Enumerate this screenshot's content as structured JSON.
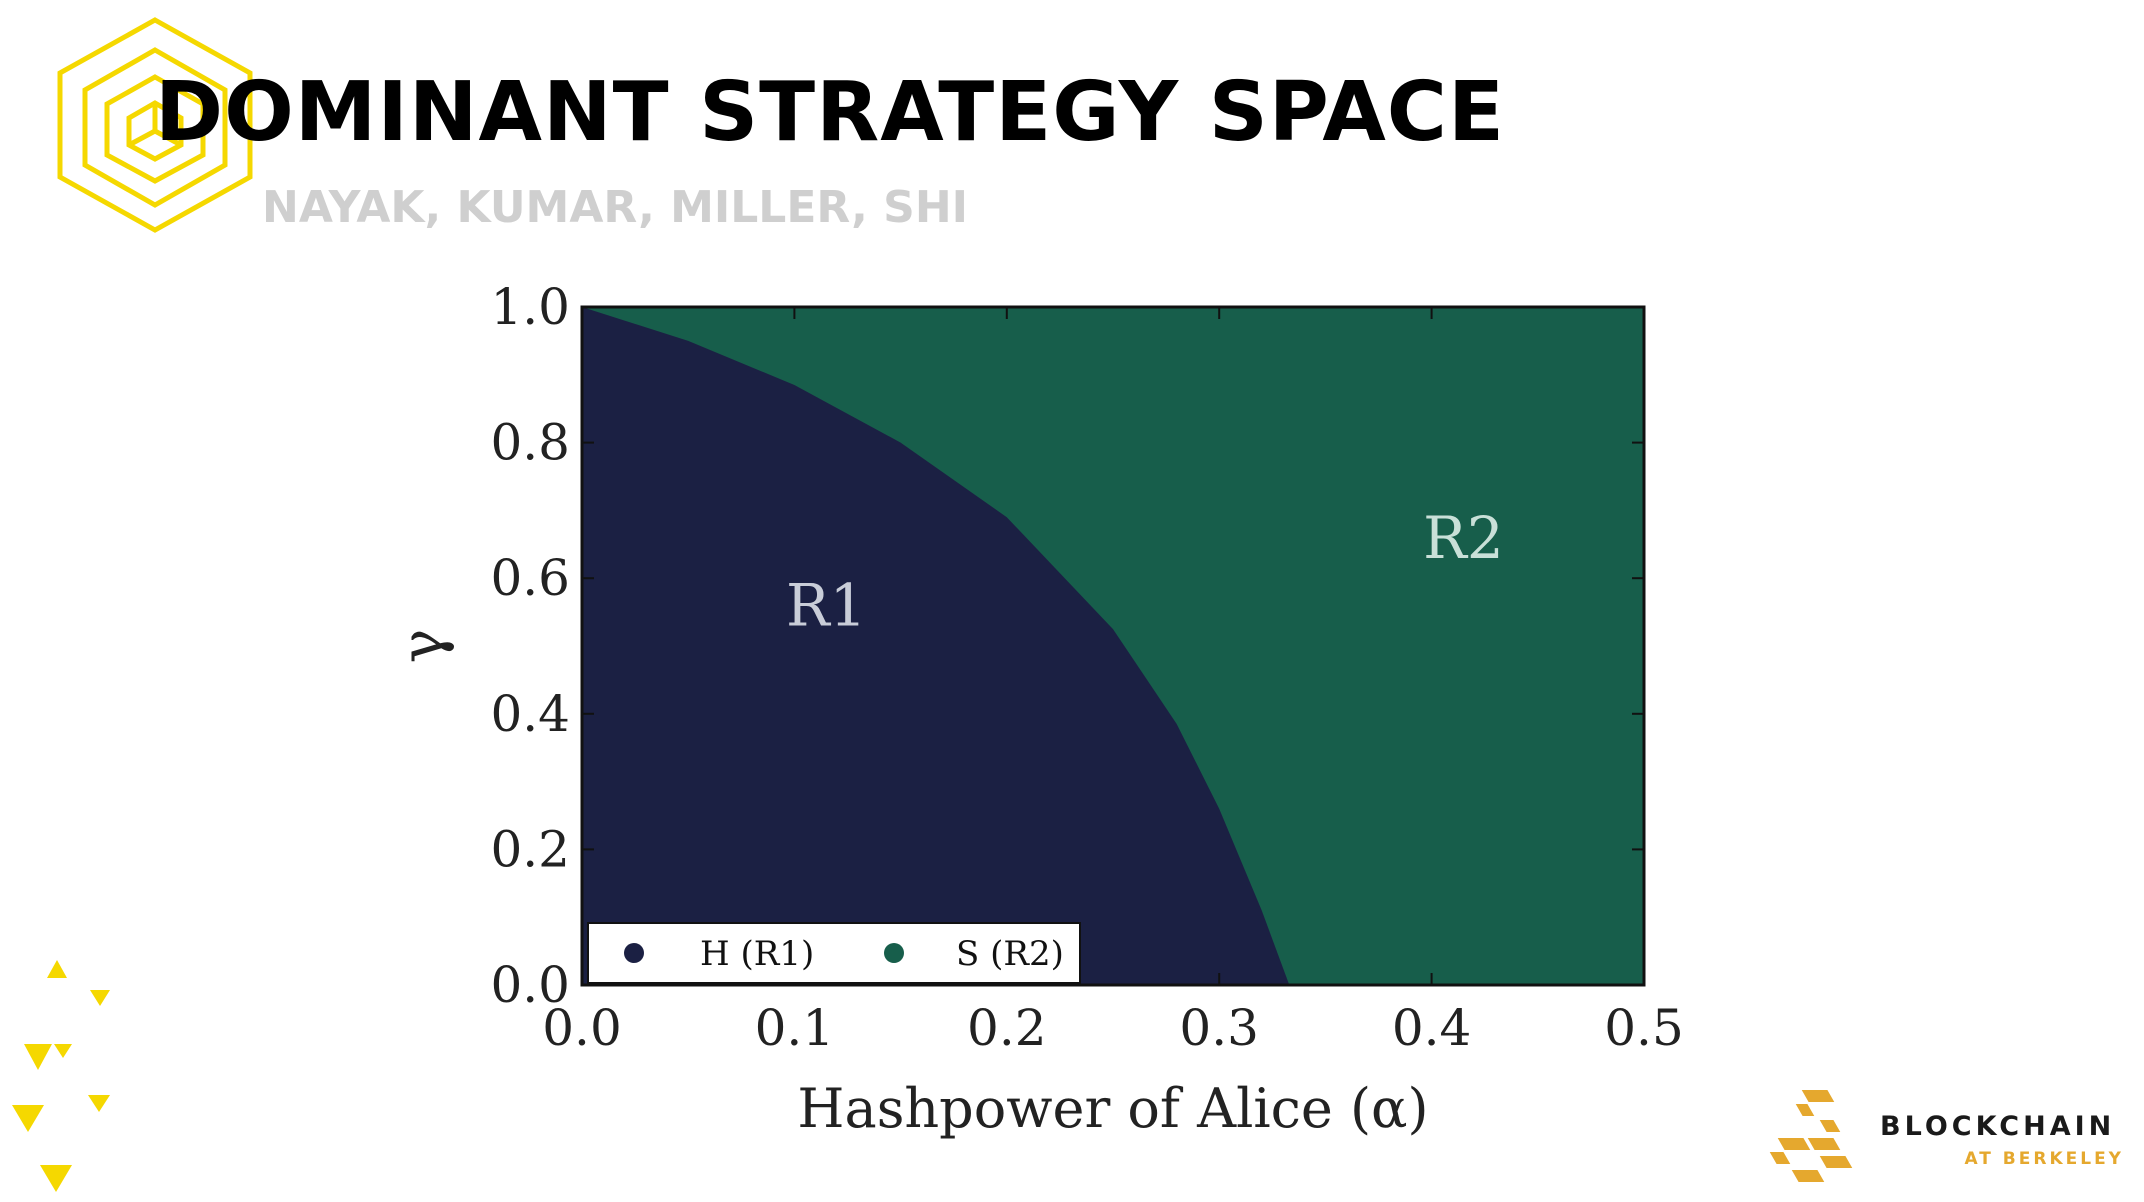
{
  "slide": {
    "title": "DOMINANT STRATEGY SPACE",
    "subtitle": "NAYAK, KUMAR, MILLER, SHI"
  },
  "brand": {
    "name": "BLOCKCHAIN",
    "sub": "AT BERKELEY"
  },
  "colors": {
    "accent_yellow": "#f5d800",
    "brand_gold": "#e5a82e",
    "r1_navy": "#1b2043",
    "r2_green": "#175e4b"
  },
  "chart_data": {
    "type": "heatmap",
    "xlabel": "Hashpower of Alice (α)",
    "ylabel": "γ",
    "xlim": [
      0.0,
      0.5
    ],
    "ylim": [
      0.0,
      1.0
    ],
    "x_ticks": [
      "0.0",
      "0.1",
      "0.2",
      "0.3",
      "0.4",
      "0.5"
    ],
    "y_ticks": [
      "0.0",
      "0.2",
      "0.4",
      "0.6",
      "0.8",
      "1.0"
    ],
    "legend_position": "bottom-left",
    "regions": [
      {
        "label": "R1",
        "legend": "H (R1)",
        "color": "#1b2043",
        "label_at": [
          0.115,
          0.53
        ]
      },
      {
        "label": "R2",
        "legend": "S (R2)",
        "color": "#175e4b",
        "label_at": [
          0.415,
          0.63
        ]
      }
    ],
    "boundary": [
      {
        "x": 0.0,
        "y": 1.0
      },
      {
        "x": 0.05,
        "y": 0.95
      },
      {
        "x": 0.1,
        "y": 0.885
      },
      {
        "x": 0.15,
        "y": 0.8
      },
      {
        "x": 0.2,
        "y": 0.69
      },
      {
        "x": 0.25,
        "y": 0.525
      },
      {
        "x": 0.28,
        "y": 0.385
      },
      {
        "x": 0.3,
        "y": 0.26
      },
      {
        "x": 0.32,
        "y": 0.11
      },
      {
        "x": 0.333,
        "y": 0.0
      }
    ]
  }
}
